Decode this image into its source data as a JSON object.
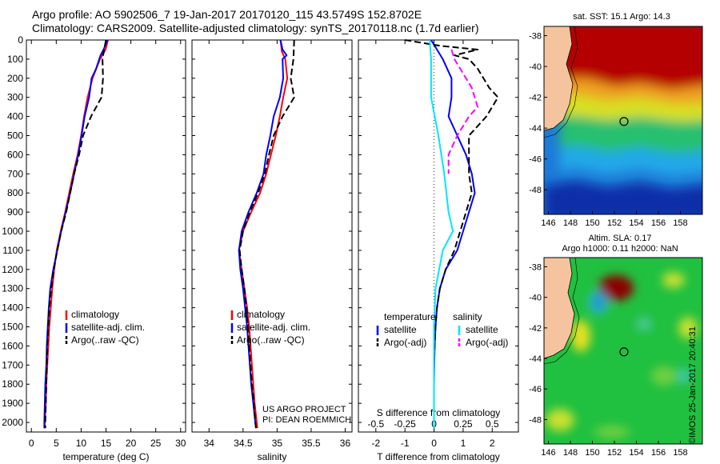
{
  "header": {
    "line1": "Argo profile: AO 5902506_7 19-Jan-2017 20170120_115 43.5749S 152.8702E",
    "line2": "Climatology: CARS2009. Satellite-adjusted climatology: synTS_20170118.nc (1.7d earlier)"
  },
  "footer_stamp": "©IMOS 25-Jan-2017 20:40:31",
  "colors": {
    "climatology": "#ff0000",
    "satellite": "#0000ff",
    "argo": "#000000",
    "s_satellite": "#00e5ff",
    "s_argo": "#ff00ff"
  },
  "chart_data": [
    {
      "id": "temperature",
      "type": "line",
      "xlabel": "temperature (deg C)",
      "ylabel": "",
      "xlim": [
        -1,
        31
      ],
      "ylim": [
        2050,
        0
      ],
      "xticks": [
        0,
        5,
        10,
        15,
        20,
        25,
        30
      ],
      "yticks": [
        0,
        100,
        200,
        300,
        400,
        500,
        600,
        700,
        800,
        900,
        1000,
        1100,
        1200,
        1300,
        1400,
        1500,
        1600,
        1700,
        1800,
        1900,
        2000
      ],
      "legend": [
        "climatology",
        "satellite-adj. clim.",
        "Argo(..raw -QC)"
      ],
      "series": [
        {
          "name": "climatology",
          "style": "solid",
          "color": "#ff0000",
          "points": [
            [
              15.4,
              0
            ],
            [
              14.9,
              50
            ],
            [
              13.8,
              100
            ],
            [
              12.3,
              200
            ],
            [
              11.3,
              300
            ],
            [
              10.6,
              400
            ],
            [
              10.0,
              500
            ],
            [
              9.3,
              600
            ],
            [
              8.4,
              700
            ],
            [
              7.6,
              800
            ],
            [
              6.8,
              900
            ],
            [
              5.9,
              1000
            ],
            [
              5.1,
              1100
            ],
            [
              4.6,
              1200
            ],
            [
              4.2,
              1300
            ],
            [
              3.9,
              1400
            ],
            [
              3.6,
              1500
            ],
            [
              3.4,
              1600
            ],
            [
              3.2,
              1700
            ],
            [
              3.0,
              1800
            ],
            [
              2.9,
              1900
            ],
            [
              2.7,
              2000
            ],
            [
              2.7,
              2030
            ]
          ]
        },
        {
          "name": "satellite-adj. clim.",
          "style": "solid",
          "color": "#0000ff",
          "points": [
            [
              15.3,
              0
            ],
            [
              14.5,
              50
            ],
            [
              13.9,
              80
            ],
            [
              13.0,
              150
            ],
            [
              12.1,
              200
            ],
            [
              11.6,
              300
            ],
            [
              10.7,
              400
            ],
            [
              10.1,
              500
            ],
            [
              9.4,
              600
            ],
            [
              8.6,
              700
            ],
            [
              7.8,
              800
            ],
            [
              6.9,
              900
            ],
            [
              6.0,
              1000
            ],
            [
              5.2,
              1100
            ],
            [
              4.4,
              1200
            ],
            [
              3.8,
              1300
            ],
            [
              3.5,
              1400
            ],
            [
              3.3,
              1500
            ],
            [
              3.1,
              1600
            ],
            [
              3.0,
              1700
            ],
            [
              2.8,
              1800
            ],
            [
              2.7,
              1900
            ],
            [
              2.6,
              2000
            ],
            [
              2.6,
              2030
            ]
          ]
        },
        {
          "name": "Argo(..raw -QC)",
          "style": "dashed",
          "color": "#000000",
          "points": [
            [
              15.0,
              0
            ],
            [
              14.7,
              40
            ],
            [
              14.3,
              100
            ],
            [
              14.4,
              200
            ],
            [
              14.1,
              300
            ],
            [
              12.0,
              400
            ],
            [
              10.4,
              500
            ],
            [
              9.6,
              600
            ],
            [
              8.6,
              700
            ],
            [
              7.8,
              800
            ],
            [
              7.0,
              900
            ],
            [
              6.0,
              1000
            ],
            [
              5.2,
              1100
            ],
            [
              4.5,
              1200
            ],
            [
              4.0,
              1300
            ],
            [
              3.6,
              1400
            ],
            [
              3.4,
              1500
            ],
            [
              3.2,
              1600
            ],
            [
              3.1,
              1700
            ],
            [
              3.0,
              1800
            ],
            [
              2.9,
              1900
            ],
            [
              2.8,
              2000
            ],
            [
              2.8,
              2030
            ]
          ]
        }
      ]
    },
    {
      "id": "salinity",
      "type": "line",
      "xlabel": "salinity",
      "xlim": [
        33.75,
        36.1
      ],
      "ylim": [
        2050,
        0
      ],
      "xticks": [
        34,
        34.5,
        35,
        35.5,
        36
      ],
      "legend": [
        "climatology",
        "satellite-adj. clim.",
        "Argo(..raw -QC)"
      ],
      "annotations": [
        "US ARGO PROJECT",
        "PI: DEAN ROEMMICH"
      ],
      "series": [
        {
          "name": "climatology",
          "style": "solid",
          "color": "#ff0000",
          "points": [
            [
              35.05,
              0
            ],
            [
              35.07,
              60
            ],
            [
              35.12,
              100
            ],
            [
              35.15,
              200
            ],
            [
              35.09,
              300
            ],
            [
              35.04,
              400
            ],
            [
              34.98,
              500
            ],
            [
              34.91,
              600
            ],
            [
              34.84,
              700
            ],
            [
              34.75,
              800
            ],
            [
              34.62,
              900
            ],
            [
              34.5,
              1000
            ],
            [
              34.44,
              1100
            ],
            [
              34.48,
              1200
            ],
            [
              34.52,
              1300
            ],
            [
              34.56,
              1400
            ],
            [
              34.59,
              1500
            ],
            [
              34.61,
              1600
            ],
            [
              34.63,
              1700
            ],
            [
              34.65,
              1800
            ],
            [
              34.67,
              1900
            ],
            [
              34.7,
              2000
            ],
            [
              34.71,
              2030
            ]
          ]
        },
        {
          "name": "satellite-adj. clim.",
          "style": "solid",
          "color": "#0000ff",
          "points": [
            [
              35.05,
              0
            ],
            [
              35.08,
              50
            ],
            [
              35.14,
              80
            ],
            [
              35.08,
              100
            ],
            [
              35.09,
              200
            ],
            [
              35.04,
              300
            ],
            [
              34.95,
              400
            ],
            [
              34.9,
              500
            ],
            [
              34.84,
              600
            ],
            [
              34.8,
              700
            ],
            [
              34.7,
              800
            ],
            [
              34.58,
              900
            ],
            [
              34.48,
              1000
            ],
            [
              34.44,
              1100
            ],
            [
              34.46,
              1200
            ],
            [
              34.5,
              1300
            ],
            [
              34.53,
              1400
            ],
            [
              34.56,
              1500
            ],
            [
              34.58,
              1600
            ],
            [
              34.6,
              1700
            ],
            [
              34.62,
              1800
            ],
            [
              34.65,
              1900
            ],
            [
              34.68,
              2000
            ],
            [
              34.69,
              2030
            ]
          ]
        },
        {
          "name": "Argo(..raw -QC)",
          "style": "dashed",
          "color": "#000000",
          "points": [
            [
              35.25,
              0
            ],
            [
              35.24,
              100
            ],
            [
              35.2,
              200
            ],
            [
              35.25,
              300
            ],
            [
              35.08,
              400
            ],
            [
              34.95,
              500
            ],
            [
              34.88,
              600
            ],
            [
              34.82,
              700
            ],
            [
              34.72,
              800
            ],
            [
              34.6,
              900
            ],
            [
              34.5,
              1000
            ],
            [
              34.45,
              1100
            ],
            [
              34.48,
              1200
            ],
            [
              34.52,
              1300
            ],
            [
              34.55,
              1400
            ],
            [
              34.57,
              1500
            ],
            [
              34.59,
              1600
            ],
            [
              34.61,
              1700
            ],
            [
              34.63,
              1800
            ],
            [
              34.66,
              1900
            ],
            [
              34.68,
              2000
            ],
            [
              34.69,
              2030
            ]
          ]
        }
      ]
    },
    {
      "id": "differences",
      "type": "line",
      "xlabel": "T difference from climatology",
      "xlabel_top": "S difference from climatology",
      "xlim": [
        -2.6,
        2.9
      ],
      "ylim": [
        2050,
        0
      ],
      "xticks": [
        -2,
        -1,
        0,
        1,
        2
      ],
      "xticks_top": [
        "-0.5",
        "-0.25",
        "0",
        "0.25",
        "0.5"
      ],
      "legend": {
        "temperature_title": "temperature",
        "salinity_title": "salinity",
        "temperature": [
          "satellite",
          "Argo(-adj)"
        ],
        "salinity": [
          "satellite",
          "Argo(-adj)"
        ]
      },
      "series": [
        {
          "name": "temperature satellite",
          "style": "solid",
          "color": "#0000ff",
          "points": [
            [
              -0.1,
              0
            ],
            [
              0.3,
              100
            ],
            [
              0.6,
              200
            ],
            [
              0.6,
              300
            ],
            [
              0.5,
              400
            ],
            [
              0.8,
              500
            ],
            [
              1.1,
              600
            ],
            [
              1.3,
              700
            ],
            [
              1.4,
              800
            ],
            [
              1.2,
              900
            ],
            [
              1.0,
              1000
            ],
            [
              0.8,
              1100
            ],
            [
              0.4,
              1200
            ],
            [
              0.2,
              1300
            ],
            [
              0.1,
              1400
            ],
            [
              0.05,
              1500
            ],
            [
              0.02,
              1600
            ],
            [
              0,
              1800
            ],
            [
              0,
              2030
            ]
          ]
        },
        {
          "name": "temperature Argo(-adj)",
          "style": "dashed",
          "color": "#000000",
          "points": [
            [
              -1.0,
              0
            ],
            [
              0.2,
              30
            ],
            [
              1.5,
              50
            ],
            [
              0.7,
              80
            ],
            [
              1.2,
              100
            ],
            [
              1.5,
              150
            ],
            [
              1.9,
              250
            ],
            [
              2.2,
              300
            ],
            [
              1.8,
              400
            ],
            [
              1.2,
              500
            ],
            [
              1.2,
              600
            ],
            [
              1.2,
              700
            ],
            [
              1.3,
              800
            ],
            [
              1.1,
              900
            ],
            [
              0.9,
              1000
            ],
            [
              0.7,
              1100
            ],
            [
              0.4,
              1200
            ],
            [
              0.2,
              1300
            ],
            [
              0.1,
              1400
            ],
            [
              0.05,
              1500
            ],
            [
              0,
              1700
            ],
            [
              0,
              2030
            ]
          ]
        },
        {
          "name": "salinity satellite",
          "style": "solid",
          "color": "#00e5ff",
          "points": [
            [
              -0.15,
              0
            ],
            [
              -0.1,
              100
            ],
            [
              -0.1,
              300
            ],
            [
              0.15,
              500
            ],
            [
              0.35,
              700
            ],
            [
              0.5,
              900
            ],
            [
              0.65,
              1000
            ],
            [
              0.3,
              1100
            ],
            [
              0.05,
              1300
            ],
            [
              0,
              1500
            ],
            [
              0,
              2030
            ]
          ]
        },
        {
          "name": "salinity Argo(-adj)",
          "style": "dashed",
          "color": "#ff00ff",
          "points": [
            [
              0.6,
              50
            ],
            [
              0.7,
              100
            ],
            [
              1.3,
              250
            ],
            [
              1.5,
              350
            ],
            [
              1.2,
              400
            ],
            [
              0.8,
              500
            ],
            [
              0.5,
              600
            ],
            [
              0.5,
              700
            ]
          ]
        }
      ]
    }
  ],
  "maps": [
    {
      "id": "sst",
      "title": "sat. SST: 15.1 Argo: 14.3",
      "xticks": [
        "146",
        "148",
        "150",
        "152",
        "154",
        "156",
        "158"
      ],
      "yticks": [
        "-38",
        "-40",
        "-42",
        "-44",
        "-46",
        "-48"
      ],
      "marker": {
        "lon": 152.87,
        "lat": -43.57
      }
    },
    {
      "id": "sla",
      "title_line1": "Altim. SLA: 0.17",
      "title_line2": "Argo h1000: 0.11 h2000: NaN",
      "xticks": [
        "146",
        "148",
        "150",
        "152",
        "154",
        "156",
        "158"
      ],
      "yticks": [
        "-38",
        "-40",
        "-42",
        "-44",
        "-46",
        "-48"
      ],
      "marker": {
        "lon": 152.87,
        "lat": -43.57
      }
    }
  ]
}
